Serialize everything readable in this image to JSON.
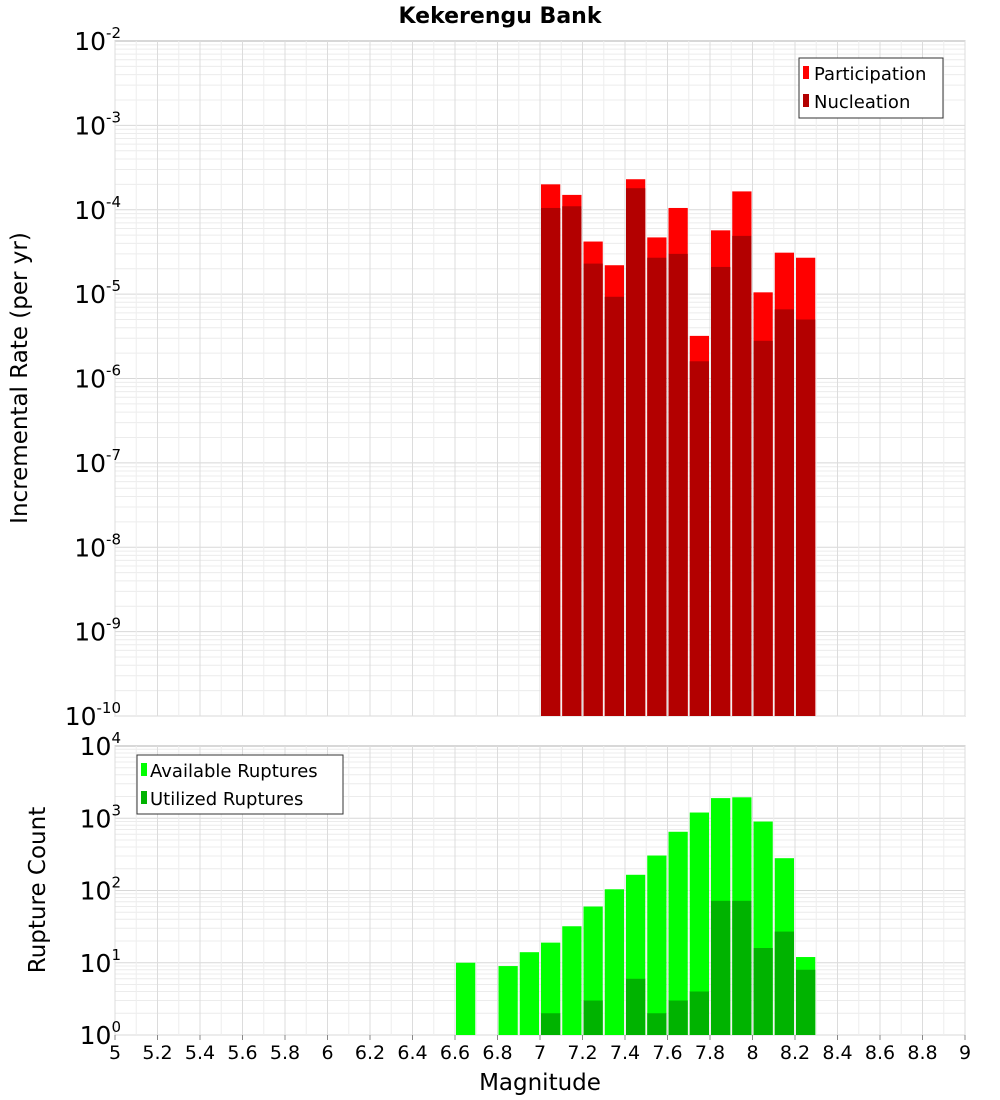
{
  "chart_data": [
    {
      "type": "bar",
      "title": "Kekerengu Bank",
      "xlabel": "",
      "ylabel": "Incremental Rate (per yr)",
      "y_scale": "log",
      "ylim_exp": [
        -10,
        -2
      ],
      "xlim": [
        5,
        9
      ],
      "bar_width": 0.1,
      "legend_position": "top-right",
      "grid": true,
      "x": [
        7.05,
        7.15,
        7.25,
        7.35,
        7.45,
        7.55,
        7.65,
        7.75,
        7.85,
        7.95,
        8.05,
        8.15,
        8.25
      ],
      "series": [
        {
          "name": "Participation",
          "color": "#ff0000",
          "values": [
            0.0002,
            0.00015,
            4.2e-05,
            2.2e-05,
            0.00023,
            4.7e-05,
            0.000105,
            3.2e-06,
            5.7e-05,
            0.000165,
            1.05e-05,
            3.1e-05,
            2.7e-05
          ]
        },
        {
          "name": "Nucleation",
          "color": "#b30000",
          "values": [
            0.000105,
            0.00011,
            2.3e-05,
            9.3e-06,
            0.00018,
            2.7e-05,
            3e-05,
            1.6e-06,
            2.1e-05,
            4.9e-05,
            2.8e-06,
            6.6e-06,
            5e-06
          ]
        }
      ]
    },
    {
      "type": "bar",
      "title": "",
      "xlabel": "Magnitude",
      "ylabel": "Rupture Count",
      "y_scale": "log",
      "ylim_exp": [
        0,
        4
      ],
      "xlim": [
        5,
        9
      ],
      "bar_width": 0.1,
      "legend_position": "top-left",
      "grid": true,
      "x_ticks": [
        "5",
        "5.2",
        "5.4",
        "5.6",
        "5.8",
        "6",
        "6.2",
        "6.4",
        "6.6",
        "6.8",
        "7",
        "7.2",
        "7.4",
        "7.6",
        "7.8",
        "8",
        "8.2",
        "8.4",
        "8.6",
        "8.8",
        "9"
      ],
      "x": [
        6.65,
        6.85,
        6.95,
        7.05,
        7.15,
        7.25,
        7.35,
        7.45,
        7.55,
        7.65,
        7.75,
        7.85,
        7.95,
        8.05,
        8.15,
        8.25
      ],
      "series": [
        {
          "name": "Available Ruptures",
          "color": "#00ff00",
          "values": [
            10,
            9,
            14,
            19,
            32,
            60,
            104,
            165,
            305,
            650,
            1200,
            1900,
            1950,
            900,
            280,
            12
          ]
        },
        {
          "name": "Utilized Ruptures",
          "color": "#00b300",
          "values": [
            0,
            0,
            0,
            2,
            1,
            3,
            1,
            6,
            2,
            3,
            4,
            72,
            72,
            16,
            27,
            8
          ]
        }
      ]
    }
  ]
}
